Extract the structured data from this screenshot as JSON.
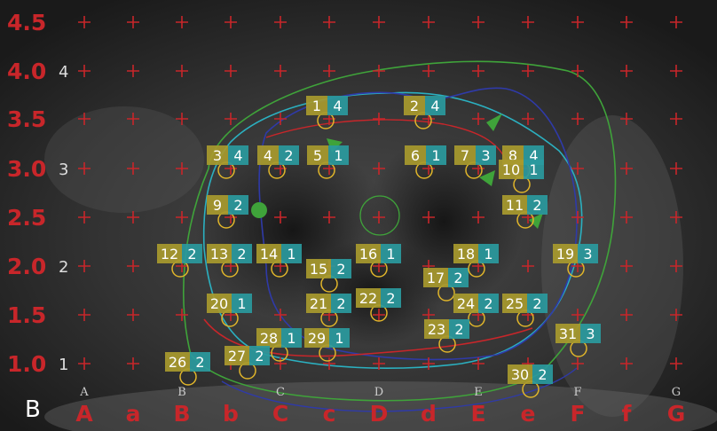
{
  "panel_label": "B",
  "y_labels_red": [
    "4.5",
    "4.0",
    "3.5",
    "3.0",
    "2.5",
    "2.0",
    "1.5",
    "1.0"
  ],
  "y_labels_white": [
    "4",
    "3",
    "2",
    "1"
  ],
  "x_labels_red": [
    "A",
    "a",
    "B",
    "b",
    "C",
    "c",
    "D",
    "d",
    "E",
    "e",
    "F",
    "f",
    "G"
  ],
  "x_labels_white": [
    "A",
    "B",
    "C",
    "D",
    "E",
    "F",
    "G"
  ],
  "seeds": [
    {
      "n": "1",
      "c": "4"
    },
    {
      "n": "2",
      "c": "4"
    },
    {
      "n": "3",
      "c": "4"
    },
    {
      "n": "4",
      "c": "2"
    },
    {
      "n": "5",
      "c": "1"
    },
    {
      "n": "6",
      "c": "1"
    },
    {
      "n": "7",
      "c": "3"
    },
    {
      "n": "8",
      "c": "4"
    },
    {
      "n": "10",
      "c": "1"
    },
    {
      "n": "9",
      "c": "2"
    },
    {
      "n": "11",
      "c": "2"
    },
    {
      "n": "12",
      "c": "2"
    },
    {
      "n": "13",
      "c": "2"
    },
    {
      "n": "14",
      "c": "1"
    },
    {
      "n": "15",
      "c": "2"
    },
    {
      "n": "16",
      "c": "1"
    },
    {
      "n": "17",
      "c": "2"
    },
    {
      "n": "18",
      "c": "1"
    },
    {
      "n": "19",
      "c": "3"
    },
    {
      "n": "20",
      "c": "1"
    },
    {
      "n": "21",
      "c": "2"
    },
    {
      "n": "22",
      "c": "2"
    },
    {
      "n": "24",
      "c": "2"
    },
    {
      "n": "25",
      "c": "2"
    },
    {
      "n": "23",
      "c": "2"
    },
    {
      "n": "28",
      "c": "1"
    },
    {
      "n": "29",
      "c": "1"
    },
    {
      "n": "31",
      "c": "3"
    },
    {
      "n": "26",
      "c": "2"
    },
    {
      "n": "27",
      "c": "2"
    },
    {
      "n": "30",
      "c": "2"
    }
  ],
  "colors": {
    "grid_red": "#c8262a",
    "seed_box": "#a89a2e",
    "count_box": "#2a9a9e",
    "contour_green": "#3fa33a",
    "contour_cyan": "#2bb0c0",
    "contour_blue": "#2f3aa8",
    "contour_red": "#c8262a"
  }
}
